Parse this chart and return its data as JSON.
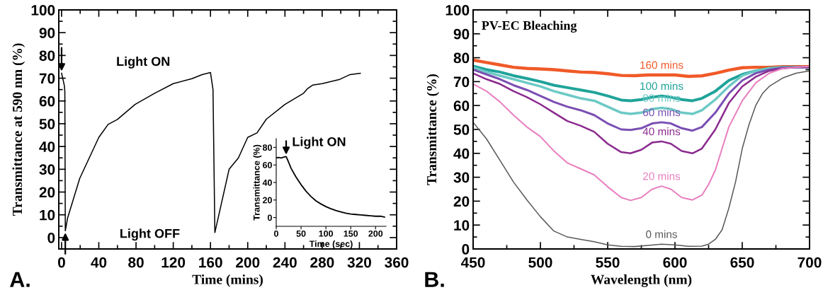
{
  "chart_data": [
    {
      "type": "line",
      "xlabel": "Time (mins)",
      "ylabel": "Transmittance at 590 nm (%)",
      "xlim": [
        -3,
        360
      ],
      "ylim": [
        -5,
        100
      ],
      "xticks": [
        0,
        40,
        80,
        120,
        160,
        200,
        240,
        280,
        320,
        360
      ],
      "yticks": [
        0,
        10,
        20,
        30,
        40,
        50,
        60,
        70,
        80,
        90,
        100
      ],
      "annotations": [
        "A.",
        "Light ON",
        "Light OFF"
      ],
      "series": [
        {
          "color": "#000000",
          "x": [
            0,
            3,
            3.5,
            4,
            6.4,
            19.5,
            40,
            50,
            60,
            79,
            100,
            120,
            140,
            151,
            160,
            162.7,
            164.7,
            180,
            190,
            200,
            210,
            220,
            240,
            260,
            264,
            270,
            280,
            299,
            310,
            321
          ],
          "values": [
            72.2,
            66.7,
            64.3,
            3,
            8.5,
            26,
            44,
            49.7,
            51.9,
            58.5,
            63.4,
            67.6,
            69.8,
            71.6,
            72.5,
            65,
            2.2,
            30,
            35,
            44,
            46,
            52,
            58.5,
            63.4,
            65.3,
            67,
            67.6,
            69.5,
            71.6,
            72.2
          ]
        }
      ]
    },
    {
      "type": "line",
      "xlabel": "Time (sec)",
      "ylabel": "Transmittance (%)",
      "xlim": [
        0,
        221
      ],
      "ylim": [
        -10,
        90
      ],
      "xticks": [
        0,
        50,
        100,
        150,
        200
      ],
      "yticks": [
        0,
        20,
        40,
        60,
        80
      ],
      "annotations": [
        "Light ON"
      ],
      "series": [
        {
          "color": "#000000",
          "x": [
            0,
            5,
            10,
            15,
            20,
            25,
            30,
            40,
            50,
            60,
            70,
            80,
            90,
            100,
            110,
            120,
            130,
            140,
            150,
            160,
            170,
            180,
            190,
            200,
            210,
            218
          ],
          "values": [
            68,
            68.5,
            68,
            69,
            69.5,
            63,
            56,
            46,
            37.5,
            30,
            24,
            19,
            15.5,
            12.5,
            10,
            8,
            6.5,
            5,
            4,
            3.5,
            3,
            2.5,
            2,
            1.5,
            1.5,
            0.5
          ]
        }
      ]
    },
    {
      "type": "line",
      "title": "PV-EC Bleaching",
      "xlabel": "Wavelength (nm)",
      "ylabel": "Transmittance (%)",
      "xlim": [
        450,
        700
      ],
      "ylim": [
        0,
        100
      ],
      "xticks": [
        450,
        500,
        550,
        600,
        650,
        700
      ],
      "yticks": [
        0,
        10,
        20,
        30,
        40,
        50,
        60,
        70,
        80,
        90,
        100
      ],
      "annotations": [
        "B."
      ],
      "series": [
        {
          "name": "160 mins",
          "color": "#f05a28",
          "x": [
            450,
            460,
            470,
            480,
            490,
            500,
            510,
            520,
            530,
            540,
            550,
            560,
            570,
            580,
            590,
            600,
            610,
            620,
            630,
            640,
            650,
            660,
            670,
            680,
            690,
            700
          ],
          "values": [
            79,
            78,
            77,
            76,
            75.5,
            75.3,
            75,
            74.5,
            74,
            73.8,
            73.3,
            72.6,
            72.5,
            72.8,
            72.8,
            72.8,
            72.2,
            72.4,
            73.5,
            74.8,
            75.8,
            76,
            76,
            76.3,
            76.3,
            76.3
          ]
        },
        {
          "name": "100 mins",
          "color": "#1fa39a",
          "x": [
            450,
            460,
            470,
            480,
            490,
            500,
            510,
            520,
            530,
            540,
            550,
            560,
            567,
            575,
            583,
            590,
            597,
            605,
            613,
            620,
            630,
            640,
            650,
            660,
            670,
            680,
            700
          ],
          "values": [
            76.5,
            75,
            74,
            72.5,
            71.3,
            70,
            68.5,
            67.5,
            66.5,
            65.5,
            64,
            62.3,
            62,
            62.5,
            63.5,
            64,
            63.5,
            62.5,
            62,
            63,
            66,
            70.5,
            73,
            74.5,
            75.5,
            76,
            76
          ]
        },
        {
          "name": "80 mins",
          "color": "#6cc9c5",
          "x": [
            450,
            460,
            470,
            480,
            490,
            500,
            510,
            520,
            530,
            540,
            550,
            560,
            567,
            575,
            583,
            590,
            597,
            605,
            613,
            620,
            630,
            640,
            650,
            660,
            670,
            680,
            700
          ],
          "values": [
            76,
            74,
            72.5,
            71,
            69.5,
            68,
            66,
            64.5,
            63,
            62,
            59.5,
            57,
            56.5,
            57,
            58.5,
            59,
            58.5,
            57,
            56.5,
            58,
            62.5,
            68,
            72.5,
            74.5,
            75.5,
            76,
            76
          ]
        },
        {
          "name": "60 mins",
          "color": "#7a4fb3",
          "x": [
            450,
            460,
            470,
            480,
            490,
            500,
            510,
            520,
            530,
            540,
            550,
            560,
            567,
            575,
            583,
            590,
            597,
            605,
            613,
            620,
            630,
            640,
            650,
            660,
            670,
            680,
            700
          ],
          "values": [
            75,
            73,
            71,
            68.5,
            66.5,
            64,
            61.5,
            59.5,
            58,
            56,
            52.5,
            50,
            49.8,
            50.5,
            52.5,
            53,
            52.5,
            50.5,
            49.5,
            51,
            57,
            65,
            70.5,
            73.5,
            75,
            75.8,
            76
          ]
        },
        {
          "name": "40 mins",
          "color": "#8b2a8e",
          "x": [
            450,
            460,
            470,
            480,
            490,
            500,
            510,
            520,
            530,
            540,
            550,
            560,
            567,
            575,
            583,
            590,
            597,
            605,
            613,
            620,
            630,
            640,
            650,
            660,
            670,
            680,
            690,
            700
          ],
          "values": [
            73.5,
            71,
            69,
            66,
            63.5,
            60.5,
            57,
            53.5,
            51.5,
            49,
            44,
            40.5,
            40,
            41.5,
            44.5,
            45,
            44,
            41,
            40,
            42,
            50,
            61,
            68,
            72,
            74.5,
            75.5,
            76,
            76
          ]
        },
        {
          "name": "20 mins",
          "color": "#e87fbf",
          "x": [
            450,
            460,
            470,
            480,
            490,
            500,
            510,
            520,
            530,
            540,
            550,
            560,
            567,
            575,
            583,
            590,
            597,
            605,
            613,
            620,
            625,
            630,
            635,
            640,
            650,
            660,
            670,
            680,
            690,
            700
          ],
          "values": [
            69,
            66,
            61.5,
            56,
            51,
            47,
            41,
            36,
            33.5,
            31,
            26,
            21.5,
            20.3,
            21.5,
            25,
            26.3,
            25,
            21.5,
            20.5,
            22.5,
            27,
            33,
            42,
            51,
            62,
            69.5,
            73.5,
            75.5,
            76,
            76.3
          ]
        },
        {
          "name": "0 mins",
          "color": "#595959",
          "x": [
            450,
            460,
            470,
            480,
            490,
            500,
            510,
            520,
            530,
            540,
            550,
            560,
            570,
            580,
            590,
            600,
            610,
            620,
            625,
            630,
            635,
            640,
            645,
            650,
            655,
            660,
            665,
            670,
            680,
            690,
            700
          ],
          "values": [
            53,
            46,
            37,
            28,
            20.5,
            13.5,
            7.5,
            5,
            4,
            3,
            1.7,
            1.1,
            1,
            1.5,
            2,
            1.7,
            1.1,
            1.2,
            2,
            4,
            8,
            17,
            28,
            42,
            52,
            60,
            65,
            68,
            71.5,
            73.5,
            74.5
          ]
        }
      ]
    }
  ]
}
